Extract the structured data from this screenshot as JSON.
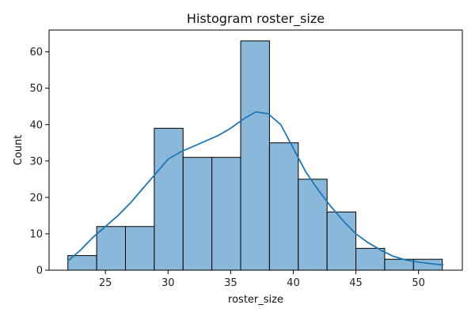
{
  "chart_data": {
    "type": "bar",
    "title": "Histogram roster_size",
    "xlabel": "roster_size",
    "ylabel": "Count",
    "xlim": [
      20.5,
      53.5
    ],
    "ylim": [
      0,
      66
    ],
    "xticks": [
      25,
      30,
      35,
      40,
      45,
      50
    ],
    "yticks": [
      0,
      10,
      20,
      30,
      40,
      50,
      60
    ],
    "grid": false,
    "bar_color": "#8ab8da",
    "line_color": "#1f77b4",
    "bins": [
      {
        "x0": 22.0,
        "x1": 24.3,
        "count": 4
      },
      {
        "x0": 24.3,
        "x1": 26.6,
        "count": 12
      },
      {
        "x0": 26.6,
        "x1": 28.9,
        "count": 12
      },
      {
        "x0": 28.9,
        "x1": 31.2,
        "count": 39
      },
      {
        "x0": 31.2,
        "x1": 33.5,
        "count": 31
      },
      {
        "x0": 33.5,
        "x1": 35.8,
        "count": 31
      },
      {
        "x0": 35.8,
        "x1": 38.1,
        "count": 63
      },
      {
        "x0": 38.1,
        "x1": 40.4,
        "count": 35
      },
      {
        "x0": 40.4,
        "x1": 42.7,
        "count": 25
      },
      {
        "x0": 42.7,
        "x1": 45.0,
        "count": 16
      },
      {
        "x0": 45.0,
        "x1": 47.3,
        "count": 6
      },
      {
        "x0": 47.3,
        "x1": 49.6,
        "count": 3
      },
      {
        "x0": 49.6,
        "x1": 51.9,
        "count": 3
      }
    ],
    "kde": {
      "x": [
        22,
        23,
        24,
        25,
        26,
        27,
        28,
        29,
        30,
        31,
        32,
        33,
        34,
        35,
        36,
        37,
        38,
        39,
        40,
        41,
        42,
        43,
        44,
        45,
        46,
        47,
        48,
        49,
        50,
        51,
        52
      ],
      "y": [
        2.5,
        5.5,
        9,
        12,
        15,
        18.5,
        22.5,
        26.5,
        30.5,
        32.5,
        34,
        35.5,
        37,
        39,
        41.5,
        43.5,
        43,
        40,
        33.5,
        27,
        22,
        17.5,
        13.5,
        10,
        7.5,
        5.5,
        3.8,
        2.8,
        2.2,
        1.8,
        1.4
      ]
    }
  }
}
